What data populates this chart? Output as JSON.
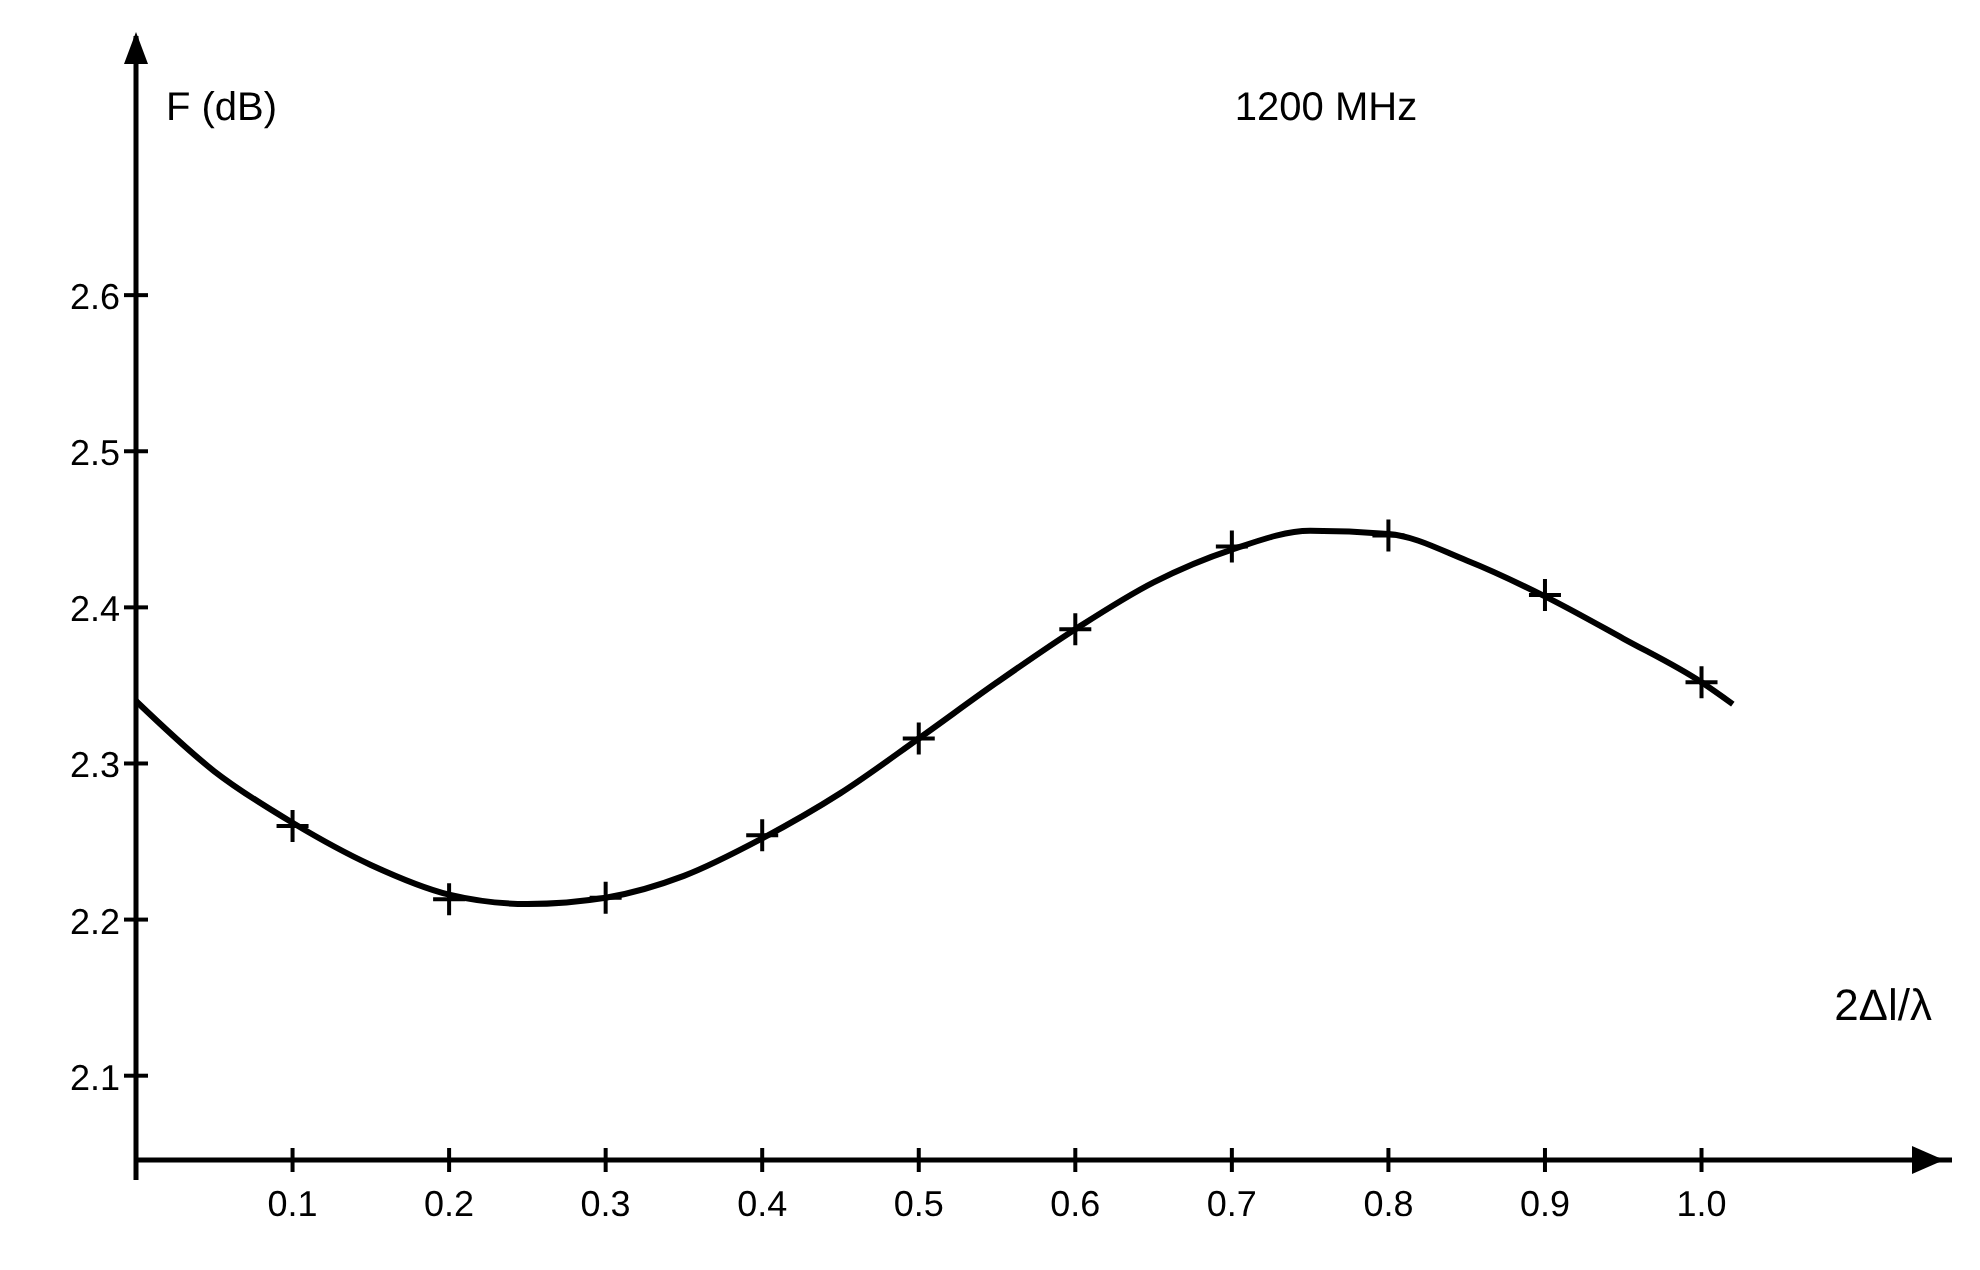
{
  "chart_data": {
    "type": "line",
    "title": "1200 MHz",
    "ylabel": "F (dB)",
    "xlabel": "2Δl/λ",
    "xlim": [
      0,
      1.16
    ],
    "ylim": [
      2.046,
      2.766
    ],
    "xticks": [
      0.1,
      0.2,
      0.3,
      0.4,
      0.5,
      0.6,
      0.7,
      0.8,
      0.9,
      {
        "value": 1,
        "label": "1.0"
      }
    ],
    "yticks": [
      2.1,
      2.2,
      2.3,
      2.4,
      2.5,
      2.6
    ],
    "grid": false,
    "series": [
      {
        "color": "#000000",
        "marker": "none",
        "x": [
          0,
          0.05,
          0.1,
          0.15,
          0.2,
          0.25,
          0.3,
          0.35,
          0.4,
          0.45,
          0.5,
          0.55,
          0.6,
          0.65,
          0.7,
          0.75,
          0.8,
          0.85,
          0.9,
          0.95,
          1.0,
          1.02
        ],
        "values": [
          2.34,
          2.295,
          2.262,
          2.235,
          2.216,
          2.21,
          2.214,
          2.228,
          2.252,
          2.281,
          2.316,
          2.352,
          2.386,
          2.416,
          2.437,
          2.449,
          2.447,
          2.43,
          2.407,
          2.38,
          2.352,
          2.338
        ]
      },
      {
        "type": "scatter",
        "color": "#000000",
        "marker": "cross",
        "x": [
          0.1,
          0.2,
          0.3,
          0.4,
          0.5,
          0.6,
          0.7,
          0.8,
          0.9,
          1.0
        ],
        "values": [
          2.26,
          2.213,
          2.214,
          2.254,
          2.316,
          2.386,
          2.439,
          2.446,
          2.408,
          2.352
        ]
      }
    ]
  }
}
